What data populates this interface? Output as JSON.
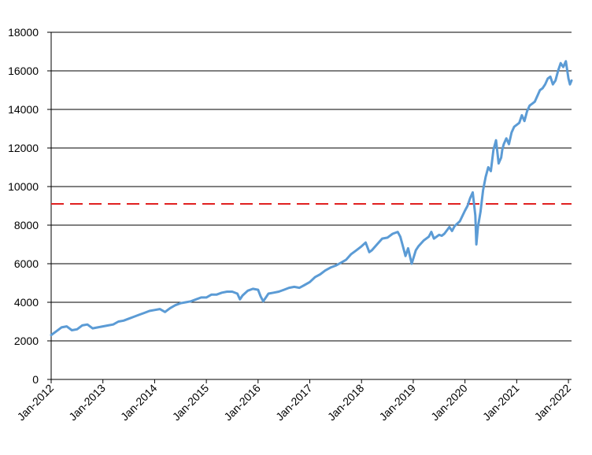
{
  "chart_data": {
    "type": "line",
    "title": "",
    "xlabel": "",
    "ylabel": "",
    "ylim": [
      0,
      18000
    ],
    "yticks": [
      0,
      2000,
      4000,
      6000,
      8000,
      10000,
      12000,
      14000,
      16000,
      18000
    ],
    "xticks": [
      "Jan-2012",
      "Jan-2013",
      "Jan-2014",
      "Jan-2015",
      "Jan-2016",
      "Jan-2017",
      "Jan-2018",
      "Jan-2019",
      "Jan-2020",
      "Jan-2021",
      "Jan-2022"
    ],
    "grid": "horizontal",
    "reference_line": {
      "value": 9100,
      "style": "dashed",
      "color": "#e02020"
    },
    "series": [
      {
        "color": "#5b9bd5",
        "x": [
          2012.0,
          2012.1,
          2012.2,
          2012.3,
          2012.4,
          2012.5,
          2012.6,
          2012.7,
          2012.8,
          2012.9,
          2013.0,
          2013.1,
          2013.2,
          2013.3,
          2013.4,
          2013.5,
          2013.6,
          2013.7,
          2013.8,
          2013.9,
          2014.0,
          2014.1,
          2014.2,
          2014.3,
          2014.4,
          2014.5,
          2014.6,
          2014.7,
          2014.8,
          2014.9,
          2015.0,
          2015.1,
          2015.2,
          2015.3,
          2015.4,
          2015.5,
          2015.6,
          2015.65,
          2015.7,
          2015.8,
          2015.9,
          2016.0,
          2016.05,
          2016.1,
          2016.2,
          2016.3,
          2016.4,
          2016.5,
          2016.6,
          2016.7,
          2016.8,
          2016.9,
          2017.0,
          2017.1,
          2017.2,
          2017.3,
          2017.4,
          2017.5,
          2017.6,
          2017.7,
          2017.8,
          2017.9,
          2018.0,
          2018.08,
          2018.15,
          2018.2,
          2018.3,
          2018.4,
          2018.5,
          2018.6,
          2018.7,
          2018.75,
          2018.8,
          2018.85,
          2018.9,
          2018.97,
          2019.05,
          2019.1,
          2019.2,
          2019.3,
          2019.35,
          2019.4,
          2019.5,
          2019.55,
          2019.6,
          2019.7,
          2019.75,
          2019.8,
          2019.9,
          2020.0,
          2020.05,
          2020.1,
          2020.15,
          2020.2,
          2020.22,
          2020.25,
          2020.3,
          2020.35,
          2020.4,
          2020.45,
          2020.5,
          2020.55,
          2020.6,
          2020.65,
          2020.7,
          2020.72,
          2020.75,
          2020.8,
          2020.85,
          2020.9,
          2020.95,
          2021.0,
          2021.05,
          2021.1,
          2021.15,
          2021.2,
          2021.25,
          2021.3,
          2021.35,
          2021.4,
          2021.45,
          2021.5,
          2021.55,
          2021.6,
          2021.65,
          2021.7,
          2021.75,
          2021.8,
          2021.85,
          2021.9,
          2021.95,
          2022.0,
          2022.03,
          2022.06
        ],
        "values": [
          2300,
          2500,
          2700,
          2750,
          2550,
          2600,
          2800,
          2850,
          2650,
          2700,
          2750,
          2800,
          2850,
          3000,
          3050,
          3150,
          3250,
          3350,
          3450,
          3550,
          3600,
          3650,
          3500,
          3700,
          3850,
          3950,
          4000,
          4050,
          4150,
          4250,
          4250,
          4400,
          4400,
          4500,
          4550,
          4550,
          4450,
          4150,
          4350,
          4600,
          4700,
          4650,
          4300,
          4050,
          4450,
          4500,
          4550,
          4650,
          4750,
          4800,
          4750,
          4900,
          5050,
          5300,
          5450,
          5650,
          5800,
          5900,
          6050,
          6200,
          6500,
          6700,
          6900,
          7100,
          6600,
          6700,
          7000,
          7300,
          7350,
          7550,
          7650,
          7400,
          6900,
          6400,
          6800,
          6000,
          6700,
          6900,
          7200,
          7400,
          7650,
          7300,
          7500,
          7450,
          7550,
          7900,
          7700,
          7950,
          8200,
          8750,
          9000,
          9400,
          9700,
          8500,
          7000,
          7900,
          8700,
          9800,
          10500,
          11000,
          10800,
          11900,
          12400,
          11200,
          11500,
          11900,
          12200,
          12500,
          12200,
          12800,
          13100,
          13200,
          13300,
          13700,
          13400,
          13900,
          14200,
          14300,
          14400,
          14700,
          15000,
          15100,
          15300,
          15600,
          15700,
          15300,
          15500,
          16000,
          16400,
          16200,
          16500,
          15600,
          15300,
          15500
        ]
      }
    ]
  }
}
